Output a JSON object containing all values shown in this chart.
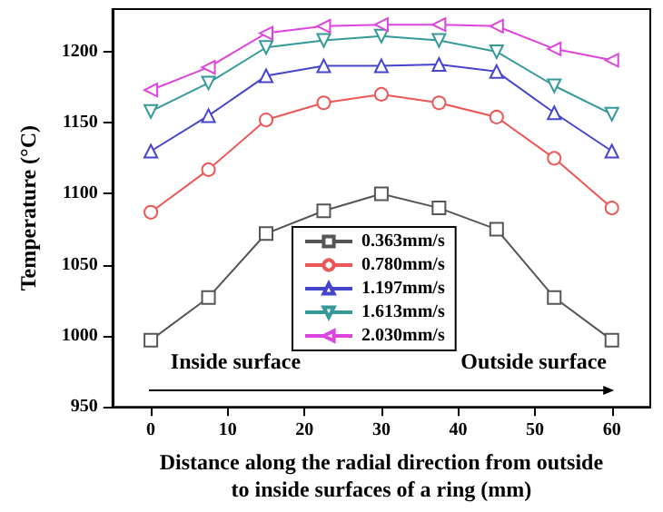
{
  "chart_data": {
    "type": "line",
    "xlabel": "Distance along the radial direction from outside\nto inside surfaces of a ring (mm)",
    "ylabel": "Temperature (°C)",
    "x": [
      0,
      7.5,
      15,
      22.5,
      30,
      37.5,
      45,
      52.5,
      60
    ],
    "series": [
      {
        "name": "0.363mm/s",
        "color": "#555555",
        "marker": "square",
        "values": [
          997,
          1027,
          1072,
          1088,
          1100,
          1090,
          1075,
          1027,
          997
        ]
      },
      {
        "name": "0.780mm/s",
        "color": "#ee5555",
        "marker": "circle",
        "values": [
          1087,
          1117,
          1152,
          1164,
          1170,
          1164,
          1154,
          1125,
          1090
        ]
      },
      {
        "name": "1.197mm/s",
        "color": "#4444cc",
        "marker": "triangle",
        "values": [
          1130,
          1155,
          1183,
          1190,
          1190,
          1191,
          1186,
          1157,
          1130
        ]
      },
      {
        "name": "1.613mm/s",
        "color": "#339999",
        "marker": "triangle-down",
        "values": [
          1158,
          1178,
          1203,
          1208,
          1211,
          1208,
          1200,
          1176,
          1156
        ]
      },
      {
        "name": "2.030mm/s",
        "color": "#dd44dd",
        "marker": "triangle-left",
        "values": [
          1173,
          1189,
          1213,
          1218,
          1219,
          1219,
          1218,
          1202,
          1194
        ]
      }
    ],
    "xlim": [
      -5,
      65
    ],
    "xticks": [
      0,
      10,
      20,
      30,
      40,
      50,
      60
    ],
    "ylim": [
      950,
      1230
    ],
    "yticks": [
      950,
      1000,
      1050,
      1100,
      1150,
      1200
    ],
    "annotations": [
      "Inside surface",
      "Outside surface"
    ],
    "grid": false,
    "legend": "bottom",
    "line_style": "solid"
  }
}
